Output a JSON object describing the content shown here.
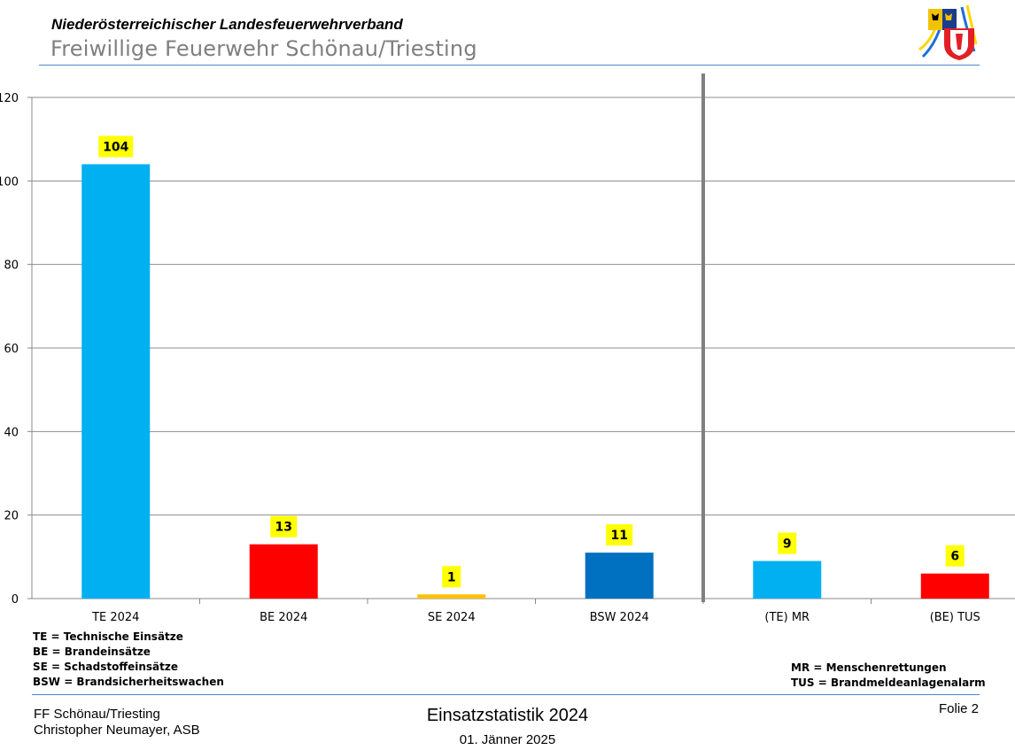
{
  "header": {
    "organization": "Niederösterreichischer Landesfeuerwehrverband",
    "unit": "Freiwillige Feuerwehr Schönau/Triesting"
  },
  "chart_data": {
    "type": "bar",
    "categories": [
      "TE 2024",
      "BE 2024",
      "SE 2024",
      "BSW 2024",
      "(TE) MR",
      "(BE) TUS"
    ],
    "values": [
      104,
      13,
      1,
      11,
      9,
      6
    ],
    "value_labels": [
      "104",
      "13",
      "1",
      "11",
      "9",
      "6"
    ],
    "colors": [
      "#00b0f0",
      "#ff0000",
      "#ffc000",
      "#0070c0",
      "#00b0f0",
      "#ff0000"
    ],
    "label_background": "#ffff00",
    "ylim": [
      0,
      120
    ],
    "y_ticks": [
      "0",
      "20",
      "40",
      "60",
      "80",
      "100",
      "120"
    ],
    "grid": true,
    "separator_after_category": 4,
    "title": "",
    "xlabel": "",
    "ylabel": ""
  },
  "legend_left": [
    "TE = Technische Einsätze",
    "BE = Brandeinsätze",
    "SE = Schadstoffeinsätze",
    "BSW = Brandsicherheitswachen"
  ],
  "legend_right": [
    "MR = Menschenrettungen",
    "TUS = Brandmeldeanlagenalarm"
  ],
  "footer": {
    "org": "FF Schönau/Triesting",
    "author": "Christopher Neumayer, ASB",
    "title": "Einsatzstatistik 2024",
    "date": "01. Jänner 2025",
    "page": "Folie 2"
  }
}
